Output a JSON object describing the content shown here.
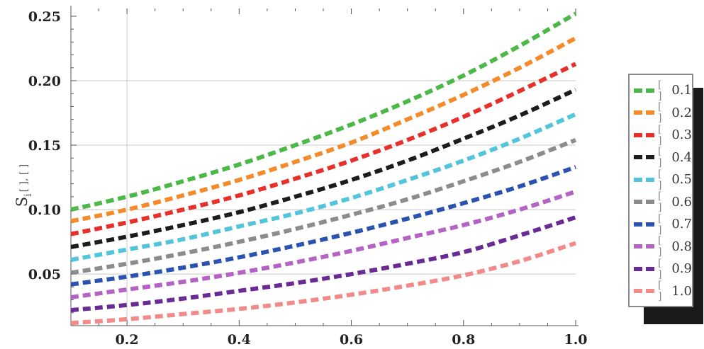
{
  "chart_data": {
    "type": "line",
    "title": "",
    "xlabel": "",
    "ylabel": "S",
    "ylabel_sub": "i",
    "ylabel_args": "[ ], [ ]",
    "xlim": [
      0.1,
      1.0
    ],
    "ylim": [
      0.01,
      0.25
    ],
    "grid": "partial",
    "legend_position": "right",
    "x_ticks": [
      "0.2",
      "0.4",
      "0.6",
      "0.8",
      "1.0"
    ],
    "y_ticks": [
      "0.05",
      "0.10",
      "0.15",
      "0.20",
      "0.25"
    ],
    "x_tick_values": [
      0.2,
      0.4,
      0.6,
      0.8,
      1.0
    ],
    "y_tick_values": [
      0.05,
      0.1,
      0.15,
      0.2,
      0.25
    ],
    "x": [
      0.1,
      0.2,
      0.3,
      0.4,
      0.5,
      0.6,
      0.7,
      0.8,
      0.9,
      1.0
    ],
    "series": [
      {
        "name": "0.1",
        "color": "#4cb848",
        "values": [
          0.1,
          0.11,
          0.122,
          0.135,
          0.15,
          0.166,
          0.184,
          0.204,
          0.227,
          0.252
        ]
      },
      {
        "name": "0.2",
        "color": "#f58a2a",
        "values": [
          0.091,
          0.1,
          0.111,
          0.123,
          0.137,
          0.152,
          0.17,
          0.189,
          0.21,
          0.233
        ]
      },
      {
        "name": "0.3",
        "color": "#e8302a",
        "values": [
          0.081,
          0.09,
          0.1,
          0.111,
          0.124,
          0.138,
          0.154,
          0.172,
          0.192,
          0.213
        ]
      },
      {
        "name": "0.4",
        "color": "#1c1c1c",
        "values": [
          0.071,
          0.079,
          0.088,
          0.098,
          0.11,
          0.123,
          0.138,
          0.155,
          0.173,
          0.193
        ]
      },
      {
        "name": "0.5",
        "color": "#52c4dc",
        "values": [
          0.061,
          0.069,
          0.077,
          0.087,
          0.097,
          0.109,
          0.123,
          0.138,
          0.155,
          0.174
        ]
      },
      {
        "name": "0.6",
        "color": "#8c8c8c",
        "values": [
          0.051,
          0.058,
          0.066,
          0.075,
          0.085,
          0.096,
          0.108,
          0.122,
          0.137,
          0.154
        ]
      },
      {
        "name": "0.7",
        "color": "#2a52b0",
        "values": [
          0.042,
          0.048,
          0.055,
          0.063,
          0.072,
          0.082,
          0.093,
          0.105,
          0.118,
          0.133
        ]
      },
      {
        "name": "0.8",
        "color": "#b463c4",
        "values": [
          0.032,
          0.038,
          0.044,
          0.051,
          0.059,
          0.068,
          0.078,
          0.088,
          0.1,
          0.114
        ]
      },
      {
        "name": "0.9",
        "color": "#6a2a96",
        "values": [
          0.022,
          0.026,
          0.031,
          0.037,
          0.043,
          0.05,
          0.058,
          0.067,
          0.08,
          0.094
        ]
      },
      {
        "name": "1.0",
        "color": "#f28a8a",
        "values": [
          0.012,
          0.015,
          0.019,
          0.023,
          0.028,
          0.034,
          0.041,
          0.049,
          0.06,
          0.074
        ]
      }
    ]
  },
  "legend": {
    "marker": "[ ]",
    "items": [
      "0.1",
      "0.2",
      "0.3",
      "0.4",
      "0.5",
      "0.6",
      "0.7",
      "0.8",
      "0.9",
      "1.0"
    ]
  }
}
